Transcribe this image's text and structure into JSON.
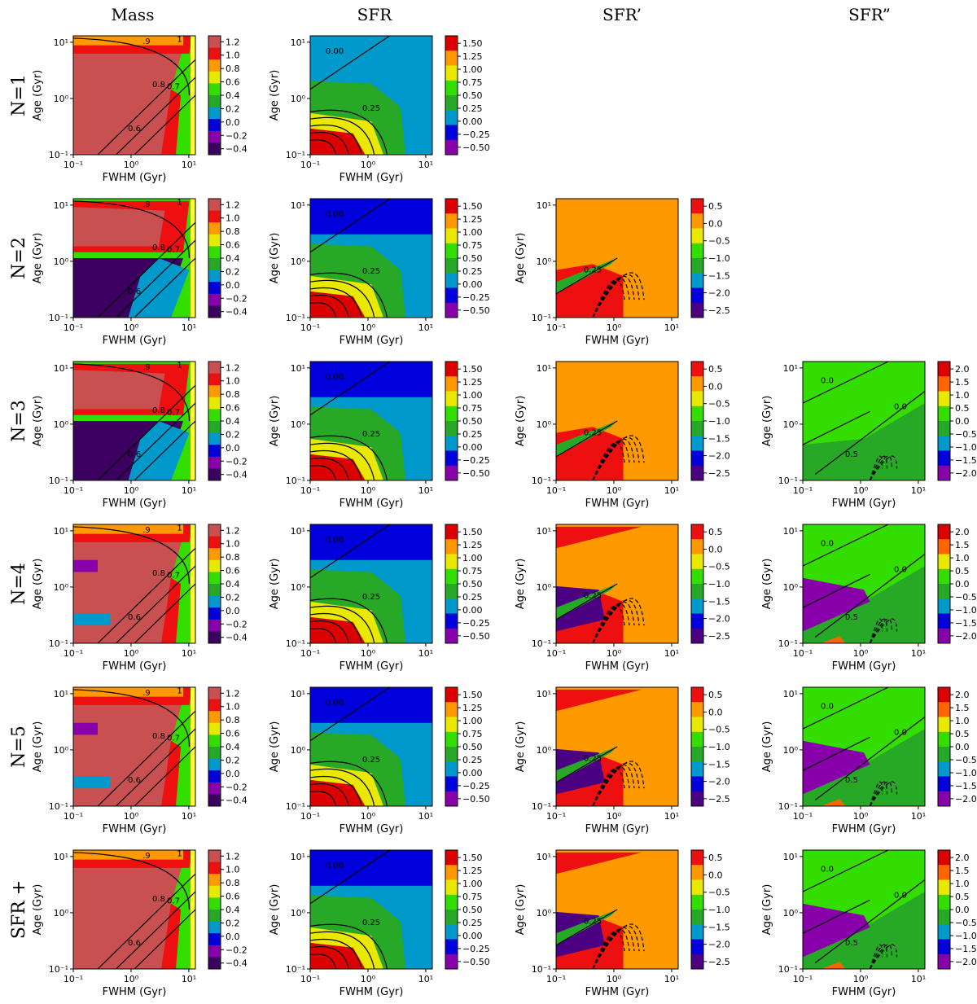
{
  "figure": {
    "column_titles": [
      "Mass",
      "SFR",
      "SFR’",
      "SFR”"
    ],
    "row_labels": [
      "N=1",
      "N=2",
      "N=3",
      "N=4",
      "N=5",
      "SFR +"
    ]
  },
  "chart_data": {
    "type": "heatmap",
    "description_axes": {
      "xlabel": "FWHM (Gyr)",
      "ylabel": "Age (Gyr)",
      "x_scale": "log",
      "y_scale": "log",
      "xlim": [
        0.1,
        13
      ],
      "ylim": [
        0.1,
        13
      ],
      "x_ticks": [
        "10⁻¹",
        "10⁰",
        "10¹"
      ],
      "y_ticks": [
        "10⁻¹",
        "10⁰",
        "10¹"
      ]
    },
    "colorbars": {
      "mass": {
        "ticks": [
          "1.2",
          "1.0",
          "0.8",
          "0.6",
          "0.4",
          "0.2",
          "0.0",
          "−0.2",
          "−0.4"
        ],
        "colors": [
          "#c85050",
          "#ee1010",
          "#ff9900",
          "#e8e800",
          "#33dd00",
          "#27a827",
          "#0099cc",
          "#0000dd",
          "#8800aa",
          "#3b0060"
        ]
      },
      "sfr": {
        "ticks": [
          "1.50",
          "1.25",
          "1.00",
          "0.75",
          "0.50",
          "0.25",
          "0.00",
          "−0.25",
          "−0.50"
        ],
        "colors": [
          "#dd0000",
          "#ff9900",
          "#e8e800",
          "#33dd00",
          "#27a827",
          "#0099cc",
          "#0000dd",
          "#8800aa"
        ]
      },
      "sfr1": {
        "ticks": [
          "0.5",
          "0.0",
          "−0.5",
          "−1.0",
          "−1.5",
          "−2.0",
          "−2.5"
        ],
        "colors": [
          "#ee1010",
          "#ff9900",
          "#e8e800",
          "#33dd00",
          "#27a827",
          "#0099cc",
          "#0000dd",
          "#4b0082"
        ]
      },
      "sfr2": {
        "ticks": [
          "2.0",
          "1.5",
          "1.0",
          "0.5",
          "0.0",
          "−0.5",
          "−1.0",
          "−1.5",
          "−2.0"
        ],
        "colors": [
          "#dd0000",
          "#ff6600",
          "#e8e800",
          "#33dd00",
          "#27a827",
          "#0099cc",
          "#0000dd",
          "#8800aa"
        ]
      }
    },
    "contour_labels": {
      "mass": [
        "0.6",
        "0.7",
        "0.8",
        ".9",
        "1"
      ],
      "sfr": [
        "0.00",
        "0.25"
      ],
      "sfr1": [
        "0.25"
      ],
      "sfr2": [
        "0.0",
        "0.0",
        "0.5"
      ]
    },
    "panels": [
      {
        "row": 0,
        "col": 0,
        "cbar": "mass",
        "present": true
      },
      {
        "row": 0,
        "col": 1,
        "cbar": "sfr",
        "present": true
      },
      {
        "row": 1,
        "col": 0,
        "cbar": "mass",
        "present": true
      },
      {
        "row": 1,
        "col": 1,
        "cbar": "sfr",
        "present": true
      },
      {
        "row": 1,
        "col": 2,
        "cbar": "sfr1",
        "present": true
      },
      {
        "row": 2,
        "col": 0,
        "cbar": "mass",
        "present": true
      },
      {
        "row": 2,
        "col": 1,
        "cbar": "sfr",
        "present": true
      },
      {
        "row": 2,
        "col": 2,
        "cbar": "sfr1",
        "present": true
      },
      {
        "row": 2,
        "col": 3,
        "cbar": "sfr2",
        "present": true
      },
      {
        "row": 3,
        "col": 0,
        "cbar": "mass",
        "present": true
      },
      {
        "row": 3,
        "col": 1,
        "cbar": "sfr",
        "present": true
      },
      {
        "row": 3,
        "col": 2,
        "cbar": "sfr1",
        "present": true
      },
      {
        "row": 3,
        "col": 3,
        "cbar": "sfr2",
        "present": true
      },
      {
        "row": 4,
        "col": 0,
        "cbar": "mass",
        "present": true
      },
      {
        "row": 4,
        "col": 1,
        "cbar": "sfr",
        "present": true
      },
      {
        "row": 4,
        "col": 2,
        "cbar": "sfr1",
        "present": true
      },
      {
        "row": 4,
        "col": 3,
        "cbar": "sfr2",
        "present": true
      },
      {
        "row": 5,
        "col": 0,
        "cbar": "mass",
        "present": true
      },
      {
        "row": 5,
        "col": 1,
        "cbar": "sfr",
        "present": true
      },
      {
        "row": 5,
        "col": 2,
        "cbar": "sfr1",
        "present": true
      },
      {
        "row": 5,
        "col": 3,
        "cbar": "sfr2",
        "present": true
      }
    ]
  }
}
